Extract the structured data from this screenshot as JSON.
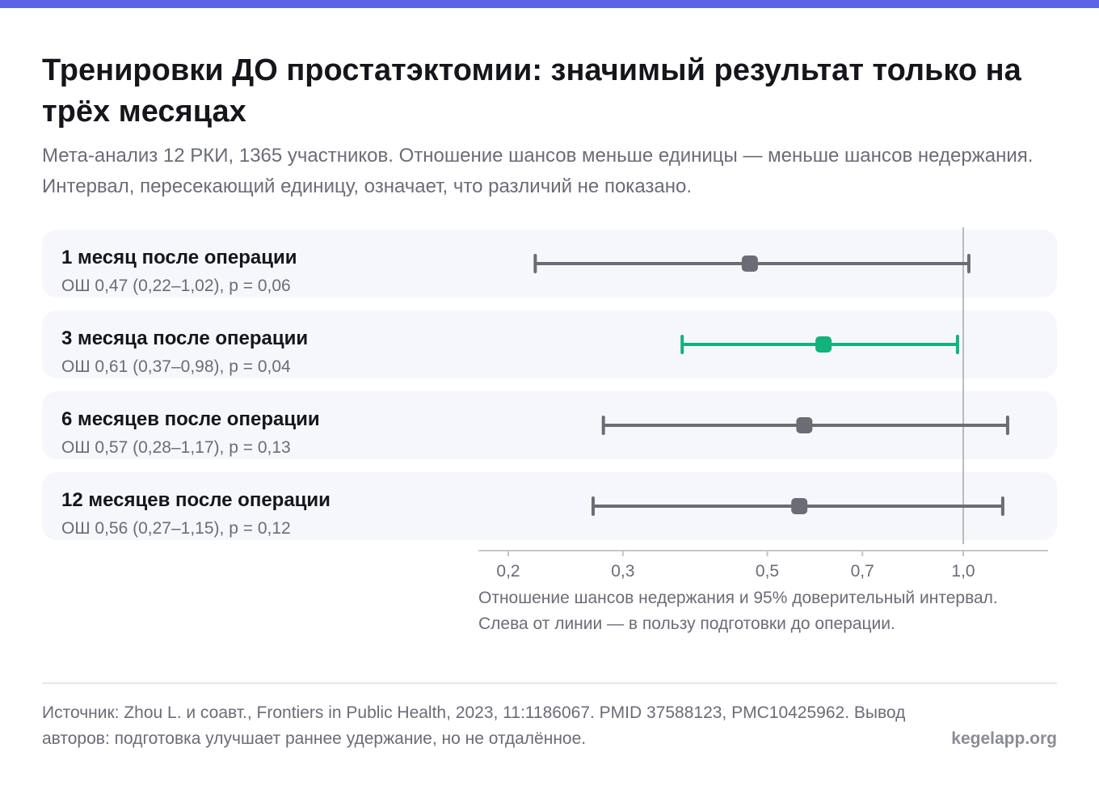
{
  "title": "Тренировки ДО простатэктомии: значимый результат только на трёх месяцах",
  "subtitle": "Мета-анализ 12 РКИ, 1365 участников. Отношение шансов меньше единицы — меньше шансов недержания. Интервал, пересекающий единицу, означает, что различий не показано.",
  "xlabel": "Отношение шансов недержания и 95% доверительный интервал. Слева от линии — в пользу подготовки до операции.",
  "source": "Источник: Zhou L. и соавт., Frontiers in Public Health, 2023, 11:1186067. PMID 37588123, PMC10425962. Вывод авторов: подготовка улучшает раннее удержание, но не отдалённое.",
  "brand": "kegelapp.org",
  "colors": {
    "neutral": "#6b6c76",
    "significant": "#12b27d",
    "reference_line": "#a4a6ae",
    "axis": "#c4c6cc",
    "accent_bar": "#5b63e6"
  },
  "chart_data": {
    "type": "forest",
    "scale": "log",
    "xlim": [
      0.18,
      1.2
    ],
    "xticks": [
      0.2,
      0.3,
      0.5,
      0.7,
      1.0
    ],
    "xtick_labels": [
      "0,2",
      "0,3",
      "0,5",
      "0,7",
      "1,0"
    ],
    "reference": 1.0,
    "rows": [
      {
        "label": "1 месяц после операции",
        "stat": "ОШ 0,47 (0,22–1,02), p = 0,06",
        "or": 0.47,
        "lo": 0.22,
        "hi": 1.02,
        "significant": false
      },
      {
        "label": "3 месяца после операции",
        "stat": "ОШ 0,61 (0,37–0,98), p = 0,04",
        "or": 0.61,
        "lo": 0.37,
        "hi": 0.98,
        "significant": true
      },
      {
        "label": "6 месяцев после операции",
        "stat": "ОШ 0,57 (0,28–1,17), p = 0,13",
        "or": 0.57,
        "lo": 0.28,
        "hi": 1.17,
        "significant": false
      },
      {
        "label": "12 месяцев после операции",
        "stat": "ОШ 0,56 (0,27–1,15), p = 0,12",
        "or": 0.56,
        "lo": 0.27,
        "hi": 1.15,
        "significant": false
      }
    ]
  }
}
